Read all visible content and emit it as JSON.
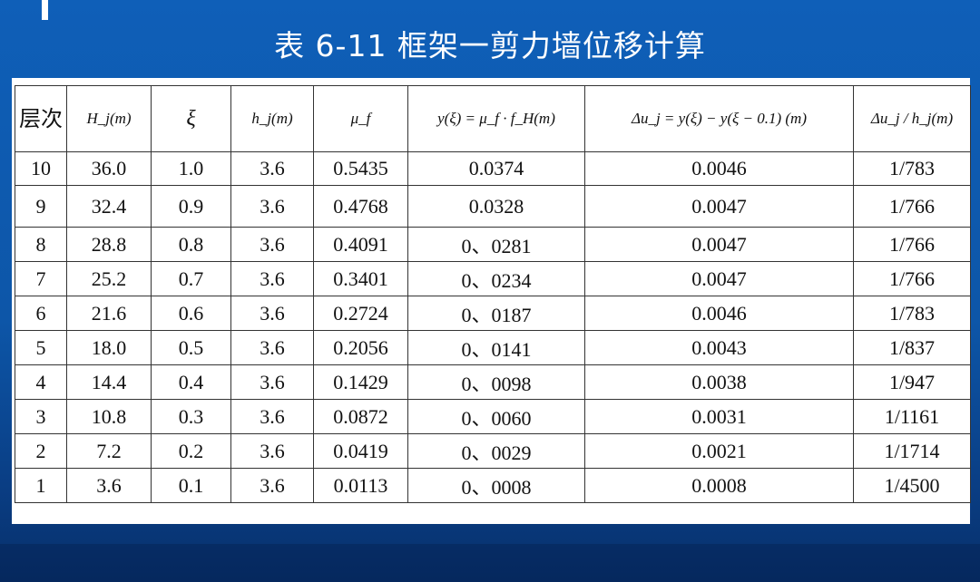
{
  "title": "表 6-11 框架一剪力墙位移计算",
  "table": {
    "headers": [
      "层次",
      "H_j(m)",
      "ξ",
      "h_j(m)",
      "μ_f",
      "y(ξ) = μ_f · f_H(m)",
      "Δu_j = y(ξ) − y(ξ − 0.1) (m)",
      "Δu_j / h_j(m)"
    ],
    "rows": [
      [
        "10",
        "36.0",
        "1.0",
        "3.6",
        "0.5435",
        "0.0374",
        "0.0046",
        "1/783"
      ],
      [
        "9",
        "32.4",
        "0.9",
        "3.6",
        "0.4768",
        "0.0328",
        "0.0047",
        "1/766"
      ],
      [
        "8",
        "28.8",
        "0.8",
        "3.6",
        "0.4091",
        "0、0281",
        "0.0047",
        "1/766"
      ],
      [
        "7",
        "25.2",
        "0.7",
        "3.6",
        "0.3401",
        "0、0234",
        "0.0047",
        "1/766"
      ],
      [
        "6",
        "21.6",
        "0.6",
        "3.6",
        "0.2724",
        "0、0187",
        "0.0046",
        "1/783"
      ],
      [
        "5",
        "18.0",
        "0.5",
        "3.6",
        "0.2056",
        "0、0141",
        "0.0043",
        "1/837"
      ],
      [
        "4",
        "14.4",
        "0.4",
        "3.6",
        "0.1429",
        "0、0098",
        "0.0038",
        "1/947"
      ],
      [
        "3",
        "10.8",
        "0.3",
        "3.6",
        "0.0872",
        "0、0060",
        "0.0031",
        "1/1161"
      ],
      [
        "2",
        "7.2",
        "0.2",
        "3.6",
        "0.0419",
        "0、0029",
        "0.0021",
        "1/1714"
      ],
      [
        "1",
        "3.6",
        "0.1",
        "3.6",
        "0.0113",
        "0、0008",
        "0.0008",
        "1/4500"
      ]
    ]
  }
}
